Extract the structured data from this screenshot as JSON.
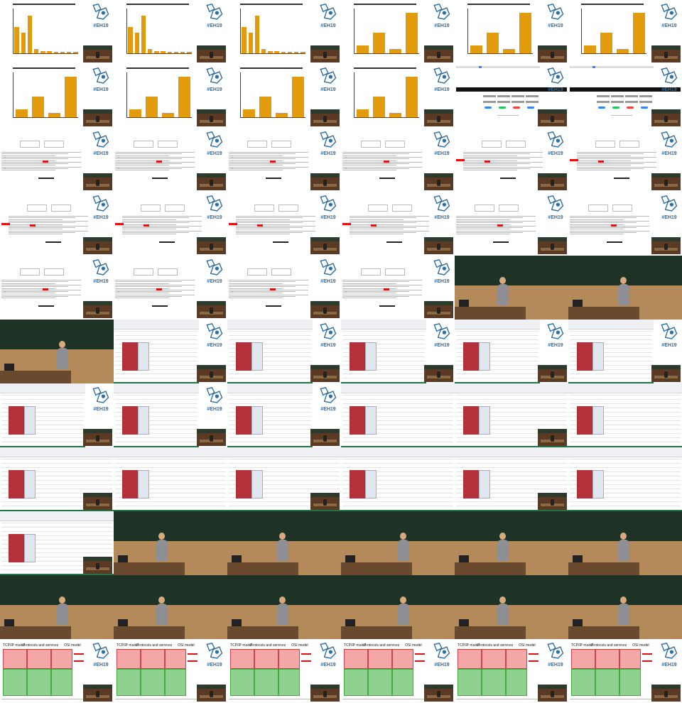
{
  "logo_text": "#EH19",
  "cell_types_by_row": [
    [
      "chart-a",
      "chart-a",
      "chart-a",
      "chart-b",
      "chart-b",
      "chart-b"
    ],
    [
      "chart-b",
      "chart-b",
      "chart-b",
      "chart-b",
      "dash",
      "dash"
    ],
    [
      "doc",
      "doc",
      "doc",
      "doc",
      "doc-wide",
      "doc-wide"
    ],
    [
      "doc-wide",
      "doc-wide",
      "doc-wide",
      "doc-wide",
      "doc",
      "doc"
    ],
    [
      "doc",
      "doc",
      "doc",
      "doc",
      "live",
      "live"
    ],
    [
      "live",
      "xl",
      "xl",
      "xl",
      "xl",
      "xl"
    ],
    [
      "xl",
      "xl",
      "xl",
      "xl-full",
      "xl-full",
      "xl-full"
    ],
    [
      "xl-full",
      "xl-full",
      "xl-full",
      "xl-full",
      "xl-full",
      "xl-full"
    ],
    [
      "xl-full",
      "live",
      "live",
      "live",
      "live",
      "live"
    ],
    [
      "live",
      "live",
      "live",
      "live",
      "live",
      "live"
    ],
    [
      "osi",
      "osi",
      "osi",
      "osi",
      "osi",
      "osi"
    ]
  ],
  "osi_headers": [
    "TCP/IP model",
    "Protocols and services",
    "OSI model"
  ],
  "colors": {
    "bar": "#e39b0e",
    "logo": "#2f6fa8",
    "xl_red": "#b5313a",
    "osi_pink": "#f4a7a7",
    "osi_green": "#8fd28f",
    "arrow": "#e11111"
  },
  "chart_a_values": [
    0.62,
    0.48,
    0.88,
    0.1,
    0.05,
    0.05,
    0.03,
    0.03,
    0.03,
    0.03
  ],
  "chart_b_values": [
    0.18,
    0.48,
    0.1,
    0.95
  ]
}
